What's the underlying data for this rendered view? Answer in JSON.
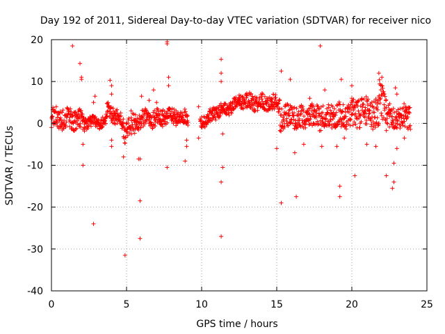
{
  "chart_data": {
    "type": "scatter",
    "title": "Day 192 of 2011, Sidereal Day-to-day VTEC variation (SDTVAR) for receiver nico",
    "xlabel": "GPS time / hours",
    "ylabel": "SDTVAR / TECUs",
    "xlim": [
      0,
      25
    ],
    "ylim": [
      -40,
      20
    ],
    "xticks": [
      0,
      5,
      10,
      15,
      20,
      25
    ],
    "yticks": [
      -40,
      -30,
      -20,
      -10,
      0,
      10,
      20
    ],
    "grid": true,
    "marker": "+",
    "color": "#ff0000",
    "dense_bands": [
      {
        "x": [
          0.0,
          2.2
        ],
        "y_center": 1.0,
        "spread": 2.5,
        "slope": -0.8
      },
      {
        "x": [
          2.2,
          3.7
        ],
        "y_center": 0.4,
        "spread": 1.3,
        "slope": 0.2
      },
      {
        "x": [
          3.7,
          4.8
        ],
        "y_center": 1.8,
        "spread": 1.8,
        "slope": -4.0
      },
      {
        "x": [
          4.8,
          6.0
        ],
        "y_center": -0.5,
        "spread": 2.5,
        "slope": 3.5
      },
      {
        "x": [
          6.0,
          7.4
        ],
        "y_center": 1.2,
        "spread": 2.0,
        "slope": 0.4
      },
      {
        "x": [
          7.4,
          9.1
        ],
        "y_center": 1.5,
        "spread": 1.8,
        "slope": -0.6
      },
      {
        "x": [
          9.9,
          10.7
        ],
        "y_center": 1.0,
        "spread": 1.5,
        "slope": 1.5
      },
      {
        "x": [
          10.7,
          12.5
        ],
        "y_center": 3.5,
        "spread": 1.5,
        "slope": 2.2
      },
      {
        "x": [
          12.5,
          15.2
        ],
        "y_center": 5.0,
        "spread": 1.8,
        "slope": -0.8
      },
      {
        "x": [
          15.2,
          17.5
        ],
        "y_center": 1.5,
        "spread": 2.8,
        "slope": 0.3
      },
      {
        "x": [
          17.5,
          20.0
        ],
        "y_center": 1.8,
        "spread": 3.0,
        "slope": 0.5
      },
      {
        "x": [
          20.0,
          21.8
        ],
        "y_center": 2.5,
        "spread": 3.5,
        "slope": -0.3
      },
      {
        "x": [
          21.8,
          22.3
        ],
        "y_center": 5.0,
        "spread": 4.0,
        "slope": -6.0
      },
      {
        "x": [
          22.3,
          23.9
        ],
        "y_center": 1.5,
        "spread": 2.8,
        "slope": 0.0
      }
    ],
    "points": [
      [
        1.4,
        18.5
      ],
      [
        1.9,
        14.3
      ],
      [
        2.0,
        11.0
      ],
      [
        2.0,
        10.5
      ],
      [
        2.1,
        -5.0
      ],
      [
        2.1,
        -10.0
      ],
      [
        2.8,
        -24.0
      ],
      [
        2.9,
        6.5
      ],
      [
        2.8,
        5.0
      ],
      [
        3.9,
        10.3
      ],
      [
        4.0,
        9.0
      ],
      [
        4.0,
        7.0
      ],
      [
        4.0,
        -4.0
      ],
      [
        4.0,
        -5.5
      ],
      [
        4.2,
        2.5
      ],
      [
        4.8,
        -8.0
      ],
      [
        4.9,
        -31.5
      ],
      [
        5.3,
        3.0
      ],
      [
        5.8,
        -8.5
      ],
      [
        5.9,
        -8.5
      ],
      [
        5.9,
        -18.5
      ],
      [
        5.9,
        -27.5
      ],
      [
        6.0,
        6.5
      ],
      [
        6.5,
        5.5
      ],
      [
        6.8,
        8.0
      ],
      [
        7.0,
        5.0
      ],
      [
        7.7,
        19.0
      ],
      [
        7.7,
        19.5
      ],
      [
        7.8,
        11.0
      ],
      [
        7.8,
        9.0
      ],
      [
        7.7,
        -10.5
      ],
      [
        8.3,
        3.0
      ],
      [
        8.9,
        -9.0
      ],
      [
        9.0,
        -4.0
      ],
      [
        9.0,
        -5.5
      ],
      [
        9.8,
        4.0
      ],
      [
        9.8,
        -3.5
      ],
      [
        11.3,
        15.3
      ],
      [
        11.3,
        12.0
      ],
      [
        11.3,
        10.0
      ],
      [
        11.4,
        -2.5
      ],
      [
        11.4,
        -10.5
      ],
      [
        11.3,
        -14.0
      ],
      [
        11.3,
        -27.0
      ],
      [
        15.0,
        -6.0
      ],
      [
        15.3,
        12.5
      ],
      [
        15.3,
        -19.0
      ],
      [
        15.9,
        10.5
      ],
      [
        16.2,
        -7.0
      ],
      [
        16.3,
        -17.5
      ],
      [
        16.8,
        -5.0
      ],
      [
        17.2,
        6.0
      ],
      [
        17.9,
        18.5
      ],
      [
        18.0,
        -5.5
      ],
      [
        18.2,
        8.0
      ],
      [
        19.2,
        -17.5
      ],
      [
        19.2,
        -15.0
      ],
      [
        19.3,
        10.5
      ],
      [
        19.5,
        -3.5
      ],
      [
        19.0,
        -5.5
      ],
      [
        20.0,
        9.0
      ],
      [
        20.2,
        -12.5
      ],
      [
        21.0,
        -5.0
      ],
      [
        21.6,
        -5.5
      ],
      [
        21.8,
        12.0
      ],
      [
        22.0,
        11.0
      ],
      [
        22.0,
        9.0
      ],
      [
        22.3,
        -12.5
      ],
      [
        22.7,
        -15.5
      ],
      [
        22.8,
        -14.0
      ],
      [
        22.9,
        8.5
      ],
      [
        22.8,
        -9.5
      ],
      [
        23.0,
        7.0
      ],
      [
        23.0,
        -6.0
      ],
      [
        23.5,
        -3.5
      ],
      [
        23.6,
        4.0
      ]
    ]
  }
}
